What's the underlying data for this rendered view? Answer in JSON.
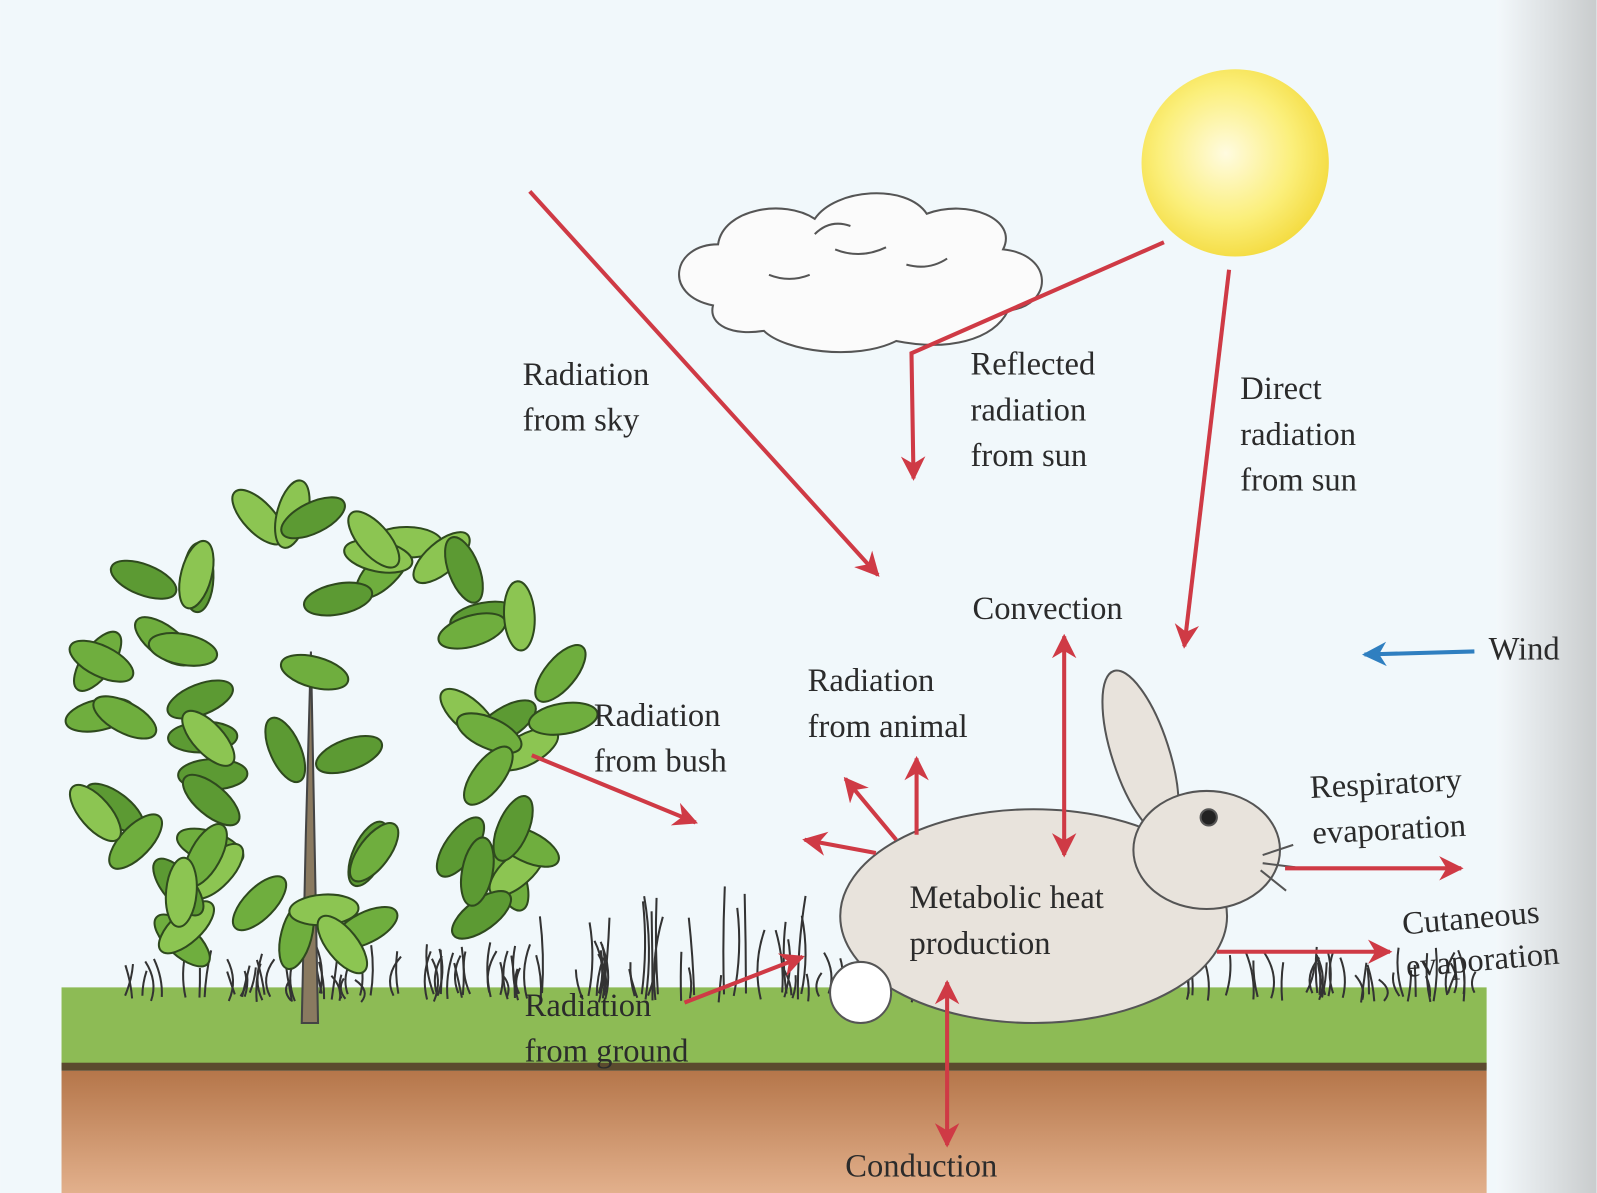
{
  "labels": {
    "radiation_sky": [
      "Radiation",
      "from sky"
    ],
    "reflected": [
      "Reflected",
      "radiation",
      "from sun"
    ],
    "direct": [
      "Direct",
      "radiation",
      "from sun"
    ],
    "convection": "Convection",
    "wind": "Wind",
    "radiation_animal": [
      "Radiation",
      "from animal"
    ],
    "radiation_bush": [
      "Radiation",
      "from bush"
    ],
    "respiratory": [
      "Respiratory",
      "evaporation"
    ],
    "metabolic": [
      "Metabolic heat",
      "production"
    ],
    "cutaneous": [
      "Cutaneous",
      "evaporation"
    ],
    "radiation_ground": [
      "Radiation",
      "from ground"
    ],
    "conduction": "Conduction"
  }
}
